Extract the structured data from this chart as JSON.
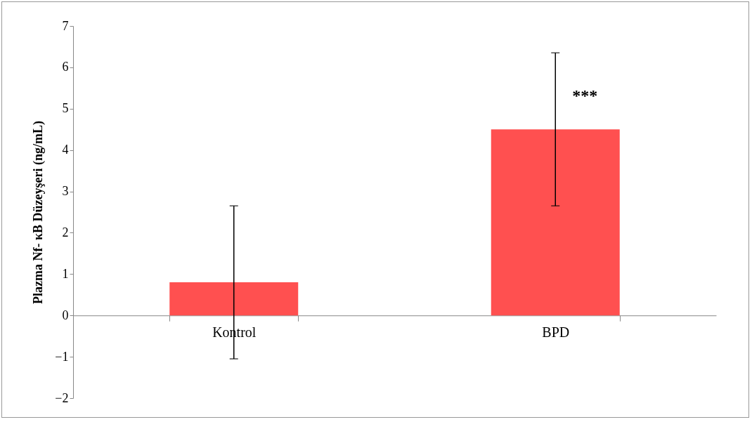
{
  "chart_data": {
    "type": "bar",
    "ylabel": "Plazma Nf- κB Düzeyşeri (ng/mL)",
    "categories": [
      "Kontrol",
      "BPD"
    ],
    "values": [
      0.8,
      4.5
    ],
    "errors": [
      1.85,
      1.85
    ],
    "color": "#ff5050",
    "ylim": [
      -2,
      7
    ],
    "yticks": [
      -2,
      -1,
      0,
      1,
      2,
      3,
      4,
      5,
      6,
      7
    ],
    "grid": false,
    "annotations": [
      {
        "text": "***",
        "x": "BPD",
        "y": 5.3
      }
    ]
  }
}
